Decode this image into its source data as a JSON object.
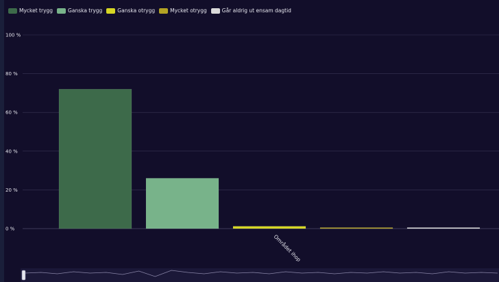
{
  "legend": {
    "items": [
      {
        "label": "Mycket trygg",
        "color": "#3d6a4a"
      },
      {
        "label": "Ganska trygg",
        "color": "#78b38a"
      },
      {
        "label": "Ganska otrygg",
        "color": "#d6d624"
      },
      {
        "label": "Mycket otrygg",
        "color": "#b3a324"
      },
      {
        "label": "Går aldrig ut ensam dagtid",
        "color": "#d9d9d9"
      }
    ]
  },
  "colors": {
    "background": "#120e2a",
    "grid": "#3a3656",
    "navigator_line": "#8a86a8"
  },
  "chart_data": {
    "type": "bar",
    "categories": [
      "Området ihop"
    ],
    "series": [
      {
        "name": "Mycket trygg",
        "values": [
          72
        ]
      },
      {
        "name": "Ganska trygg",
        "values": [
          26
        ]
      },
      {
        "name": "Ganska otrygg",
        "values": [
          1.2
        ]
      },
      {
        "name": "Mycket otrygg",
        "values": [
          0.4
        ]
      },
      {
        "name": "Går aldrig ut ensam dagtid",
        "values": [
          0.3
        ]
      }
    ],
    "y_ticks": [
      "0 %",
      "20 %",
      "40 %",
      "60 %",
      "80 %",
      "100 %"
    ],
    "ylim": [
      0,
      100
    ],
    "grid": true,
    "legend_position": "top-left",
    "navigator": true
  }
}
